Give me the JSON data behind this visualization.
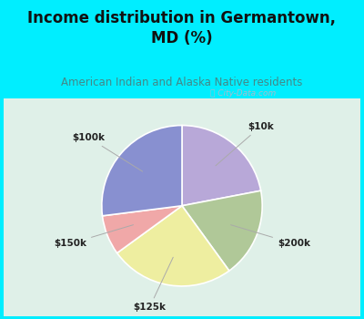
{
  "title": "Income distribution in Germantown,\nMD (%)",
  "subtitle": "American Indian and Alaska Native residents",
  "labels": [
    "$10k",
    "$200k",
    "$125k",
    "$150k",
    "$100k"
  ],
  "sizes": [
    22,
    18,
    25,
    8,
    27
  ],
  "colors": [
    "#b8a8d8",
    "#b0c898",
    "#eeeea0",
    "#f0a8a8",
    "#8890d0"
  ],
  "bg_color": "#00eeff",
  "chart_bg": "#e0f0e8",
  "title_color": "#111111",
  "subtitle_color": "#448888",
  "watermark": "City-Data.com"
}
